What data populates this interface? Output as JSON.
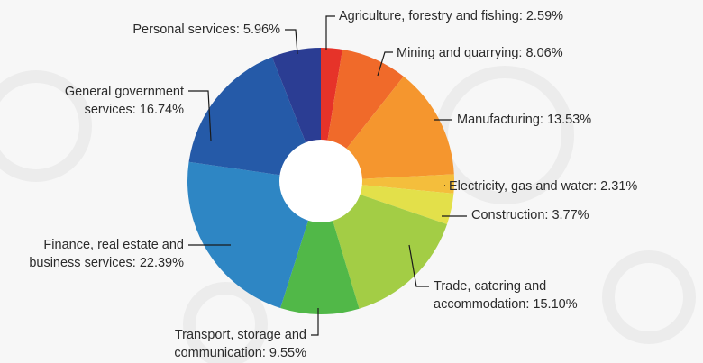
{
  "chart_data": {
    "type": "pie",
    "variant": "donut",
    "start": "top",
    "direction": "clockwise",
    "slices": [
      {
        "label_lines": [
          "Agriculture, forestry and fishing: 2.59%"
        ],
        "category": "Agriculture, forestry and fishing",
        "value": 2.59,
        "color": "#e63329"
      },
      {
        "label_lines": [
          "Mining and quarrying: 8.06%"
        ],
        "category": "Mining and quarrying",
        "value": 8.06,
        "color": "#f06a2a"
      },
      {
        "label_lines": [
          "Manufacturing: 13.53%"
        ],
        "category": "Manufacturing",
        "value": 13.53,
        "color": "#f5962e"
      },
      {
        "label_lines": [
          "Electricity, gas and water: 2.31%"
        ],
        "category": "Electricity, gas and water",
        "value": 2.31,
        "color": "#f4be3c"
      },
      {
        "label_lines": [
          "Construction: 3.77%"
        ],
        "category": "Construction",
        "value": 3.77,
        "color": "#e3e04a"
      },
      {
        "label_lines": [
          "Trade, catering and",
          "accommodation: 15.10%"
        ],
        "category": "Trade, catering and accommodation",
        "value": 15.1,
        "color": "#a3cd45"
      },
      {
        "label_lines": [
          "Transport, storage and",
          "communication: 9.55%"
        ],
        "category": "Transport, storage and communication",
        "value": 9.55,
        "color": "#51b848"
      },
      {
        "label_lines": [
          "Finance, real estate and",
          "business services: 22.39%"
        ],
        "category": "Finance, real estate and business services",
        "value": 22.39,
        "color": "#2e86c4"
      },
      {
        "label_lines": [
          "General government",
          "services: 16.74%"
        ],
        "category": "General government services",
        "value": 16.74,
        "color": "#255aa8"
      },
      {
        "label_lines": [
          "Personal services: 5.96%"
        ],
        "category": "Personal services",
        "value": 5.96,
        "color": "#2b3d93"
      }
    ]
  }
}
